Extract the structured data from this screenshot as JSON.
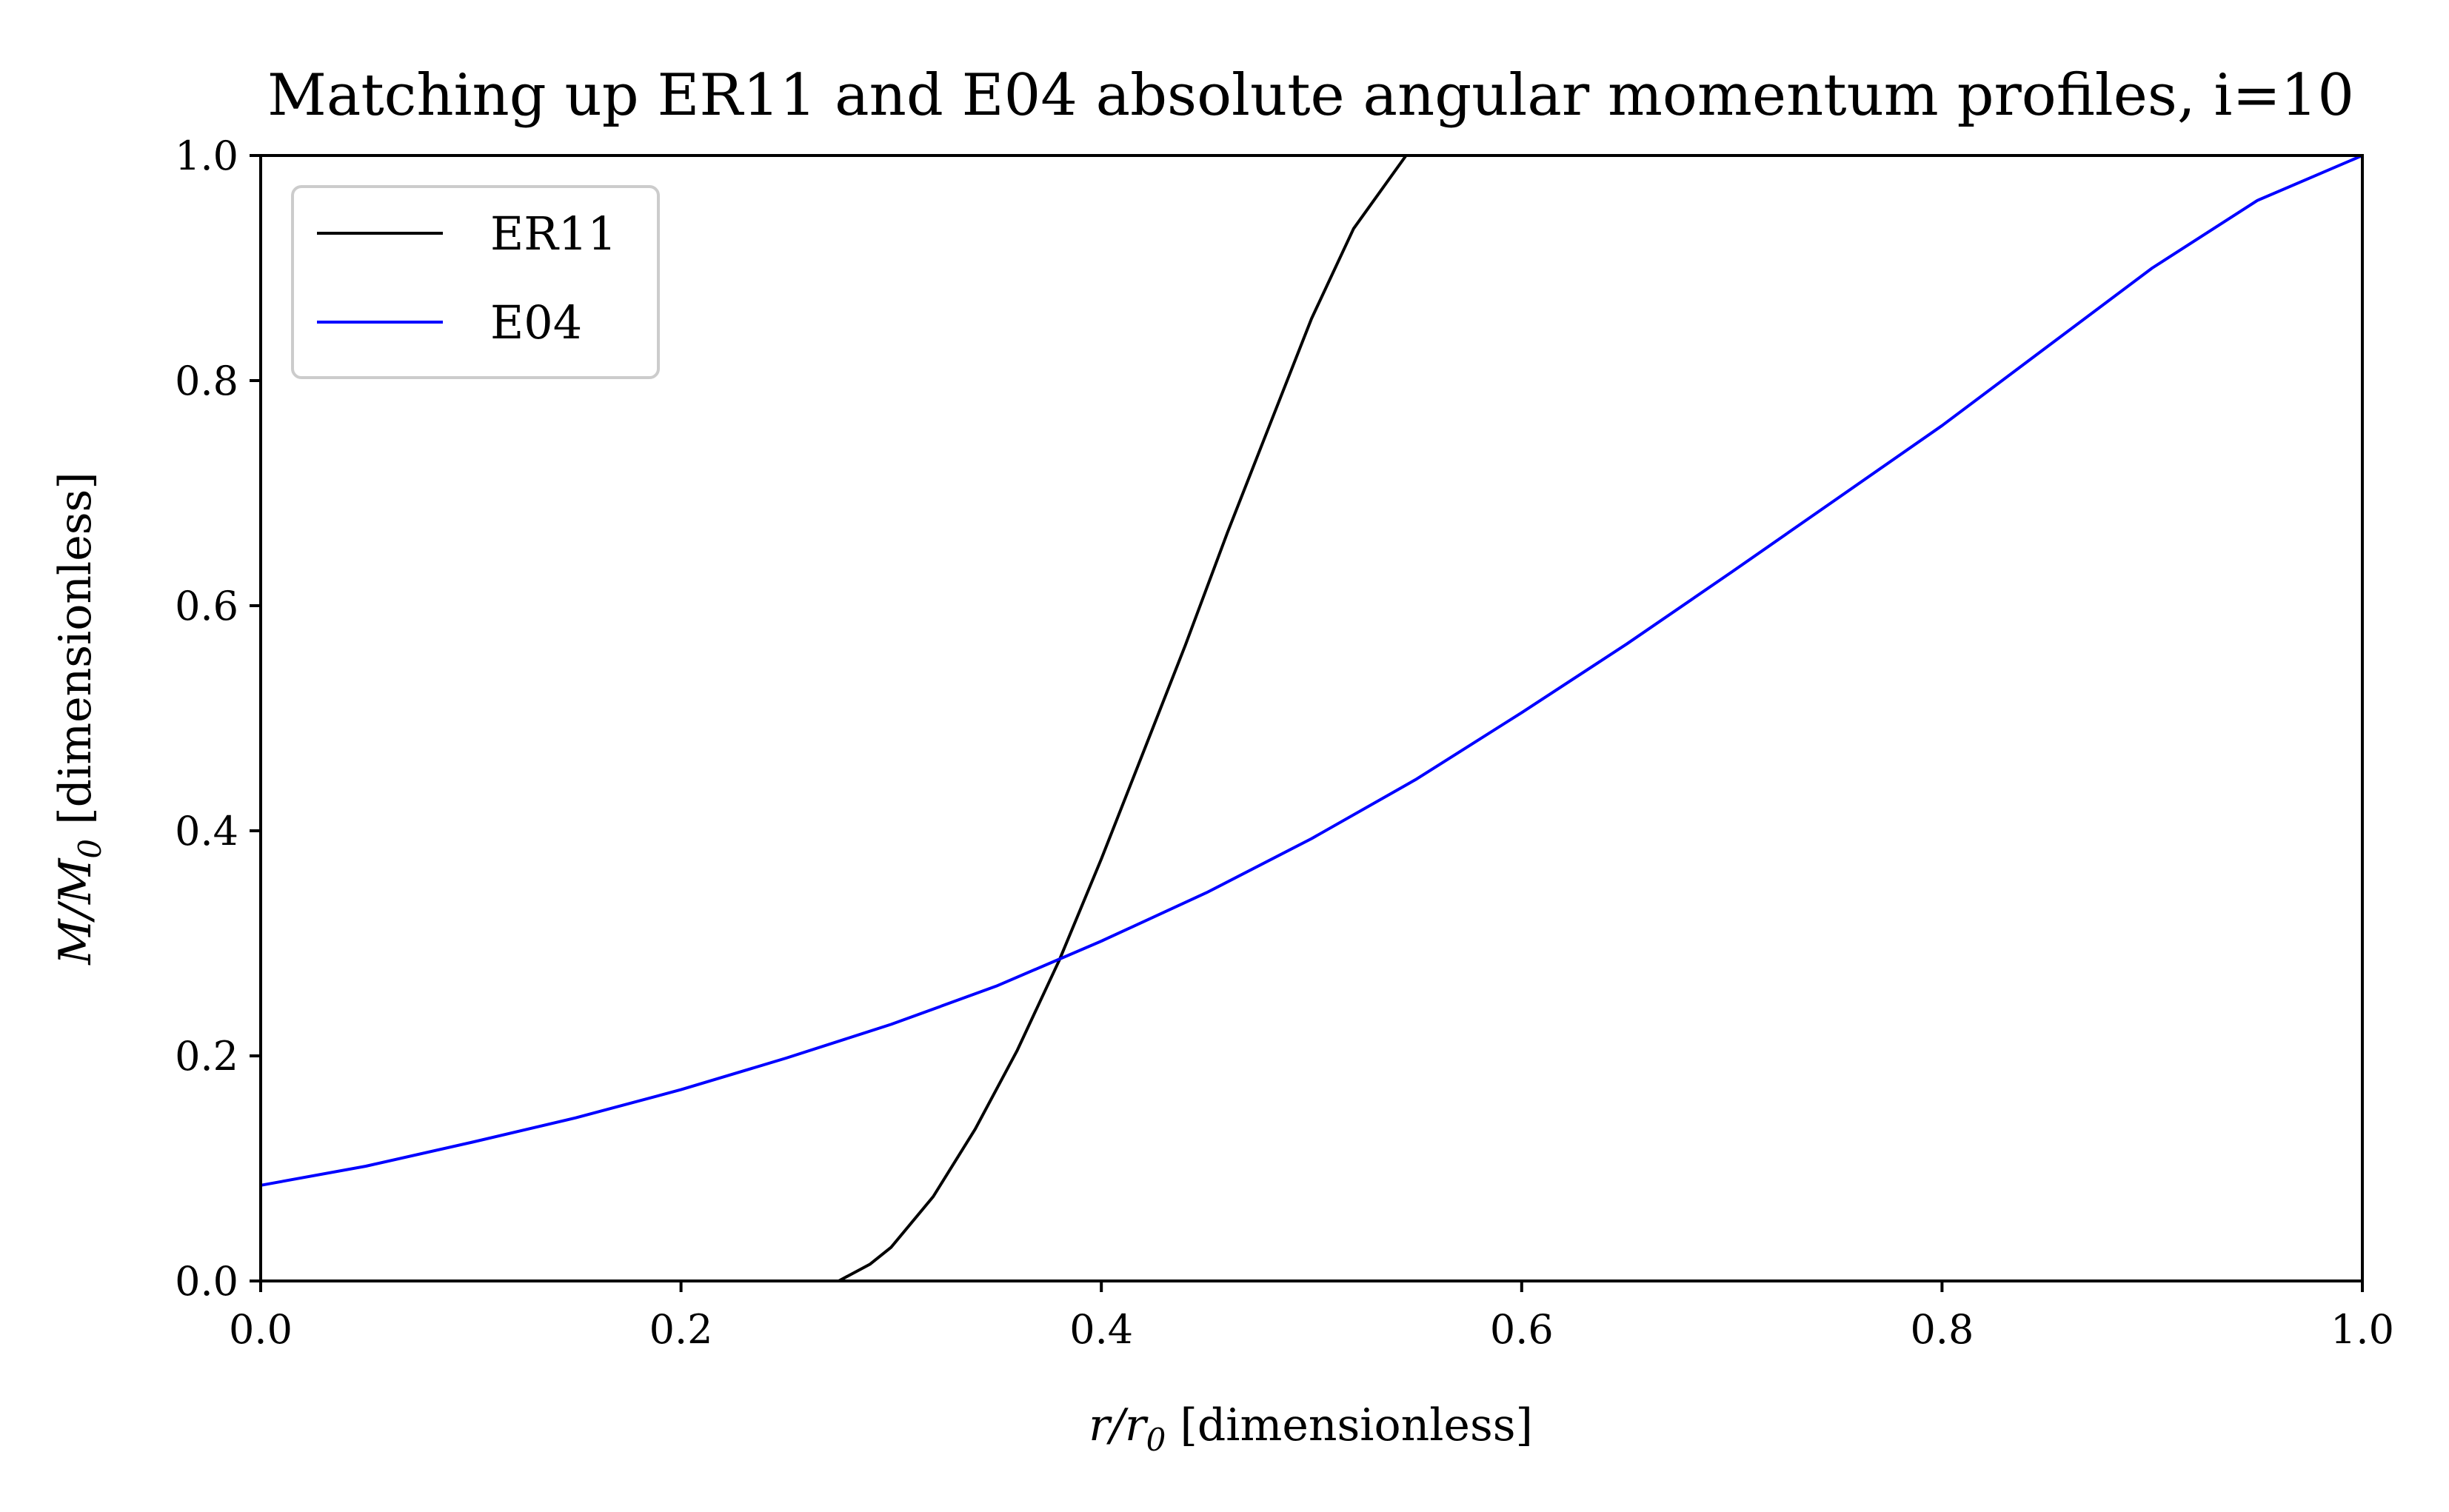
{
  "chart_data": {
    "type": "line",
    "title": "Matching up ER11 and E04 absolute angular momentum profiles, i=10",
    "xlabel_var": "r/r",
    "xlabel_sub": "0",
    "xlabel_unit": " [dimensionless]",
    "ylabel_var": "M/M",
    "ylabel_sub": "0",
    "ylabel_unit": " [dimensionless]",
    "xlim": [
      0.0,
      1.0
    ],
    "ylim": [
      0.0,
      1.0
    ],
    "xticks": [
      "0.0",
      "0.2",
      "0.4",
      "0.6",
      "0.8",
      "1.0"
    ],
    "yticks": [
      "0.0",
      "0.2",
      "0.4",
      "0.6",
      "0.8",
      "1.0"
    ],
    "grid": false,
    "legend_position": "upper-left",
    "series": [
      {
        "name": "ER11",
        "color": "#000000",
        "x": [
          0.0,
          0.02,
          0.04,
          0.1,
          0.2,
          0.275,
          0.29,
          0.3,
          0.32,
          0.34,
          0.36,
          0.38,
          0.4,
          0.42,
          0.44,
          0.46,
          0.48,
          0.5,
          0.52,
          0.545
        ],
        "y": [
          0.0,
          0.0,
          0.0,
          0.0,
          0.0,
          0.0,
          0.015,
          0.03,
          0.075,
          0.135,
          0.205,
          0.285,
          0.375,
          0.47,
          0.565,
          0.665,
          0.76,
          0.855,
          0.935,
          1.0
        ]
      },
      {
        "name": "E04",
        "color": "#0000ff",
        "x": [
          0.0,
          0.05,
          0.1,
          0.15,
          0.2,
          0.25,
          0.3,
          0.35,
          0.4,
          0.45,
          0.5,
          0.55,
          0.6,
          0.65,
          0.7,
          0.75,
          0.8,
          0.85,
          0.9,
          0.95,
          1.0
        ],
        "y": [
          0.085,
          0.102,
          0.123,
          0.145,
          0.17,
          0.198,
          0.228,
          0.262,
          0.302,
          0.345,
          0.393,
          0.446,
          0.505,
          0.566,
          0.63,
          0.695,
          0.76,
          0.83,
          0.9,
          0.96,
          1.0
        ]
      }
    ]
  }
}
